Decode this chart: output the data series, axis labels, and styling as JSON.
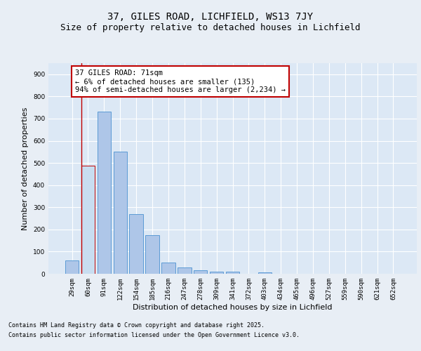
{
  "title": "37, GILES ROAD, LICHFIELD, WS13 7JY",
  "subtitle": "Size of property relative to detached houses in Lichfield",
  "xlabel": "Distribution of detached houses by size in Lichfield",
  "ylabel": "Number of detached properties",
  "categories": [
    "29sqm",
    "60sqm",
    "91sqm",
    "122sqm",
    "154sqm",
    "185sqm",
    "216sqm",
    "247sqm",
    "278sqm",
    "309sqm",
    "341sqm",
    "372sqm",
    "403sqm",
    "434sqm",
    "465sqm",
    "496sqm",
    "527sqm",
    "559sqm",
    "590sqm",
    "621sqm",
    "652sqm"
  ],
  "values": [
    60,
    487,
    730,
    550,
    270,
    175,
    50,
    30,
    15,
    10,
    10,
    0,
    5,
    0,
    0,
    0,
    0,
    0,
    0,
    0,
    0
  ],
  "bar_color": "#aec6e8",
  "bar_edge_color": "#5b9bd5",
  "highlight_bar_index": 1,
  "highlight_color": "#c8ddf0",
  "highlight_edge_color": "#c00000",
  "vline_color": "#c00000",
  "vline_x": 0.575,
  "annotation_text": "37 GILES ROAD: 71sqm\n← 6% of detached houses are smaller (135)\n94% of semi-detached houses are larger (2,234) →",
  "annotation_box_edge_color": "#c00000",
  "annotation_box_face_color": "#ffffff",
  "ylim": [
    0,
    950
  ],
  "yticks": [
    0,
    100,
    200,
    300,
    400,
    500,
    600,
    700,
    800,
    900
  ],
  "background_color": "#dce8f5",
  "grid_color": "#ffffff",
  "footer_line1": "Contains HM Land Registry data © Crown copyright and database right 2025.",
  "footer_line2": "Contains public sector information licensed under the Open Government Licence v3.0.",
  "title_fontsize": 10,
  "subtitle_fontsize": 9,
  "axis_label_fontsize": 8,
  "tick_fontsize": 6.5,
  "annotation_fontsize": 7.5,
  "footer_fontsize": 6
}
